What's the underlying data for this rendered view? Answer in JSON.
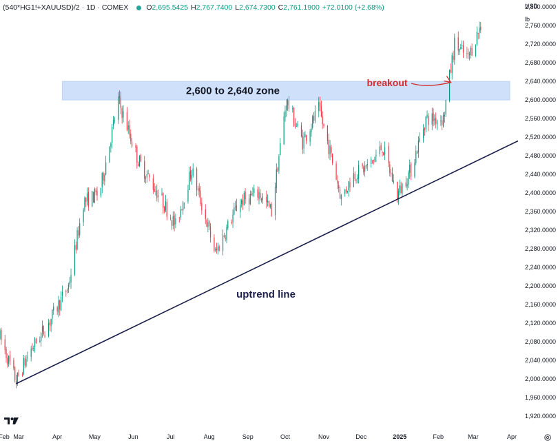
{
  "header": {
    "symbol": "(540*HG1!+XAUUSD)/2 · 1D · COMEX",
    "open_label": "O",
    "open": "2,695.5425",
    "high_label": "H",
    "high": "2,767.7400",
    "low_label": "L",
    "low": "2,674.7300",
    "close_label": "C",
    "close": "2,761.1900",
    "change": "+72.0100 (+2.68%)"
  },
  "colors": {
    "up": "#089981",
    "down": "#f23645",
    "zone": "#cfe0fb",
    "trendline": "#1b1f4a",
    "annotation": "#d32f2f",
    "text": "#131722"
  },
  "icons": {
    "logo": "tradingview-logo-icon",
    "settings": "gear-icon"
  },
  "chart_data": {
    "type": "candlestick",
    "currency": "USD",
    "unit": "lb",
    "ylim": [
      1895,
      2815
    ],
    "y_ticks": [
      "2,800.0000",
      "2,760.0000",
      "2,720.0000",
      "2,680.0000",
      "2,640.0000",
      "2,600.0000",
      "2,560.0000",
      "2,520.0000",
      "2,480.0000",
      "2,440.0000",
      "2,400.0000",
      "2,360.0000",
      "2,320.0000",
      "2,280.0000",
      "2,240.0000",
      "2,200.0000",
      "2,160.0000",
      "2,120.0000",
      "2,080.0000",
      "2,040.0000",
      "2,000.0000",
      "1,960.0000",
      "1,920.0000"
    ],
    "x_range": [
      "2024-02-15",
      "2025-04-06"
    ],
    "x_ticks": [
      {
        "date": "2024-02-01",
        "label": "Feb"
      },
      {
        "date": "2024-03-01",
        "label": "Mar"
      },
      {
        "date": "2024-04-01",
        "label": "Apr"
      },
      {
        "date": "2024-05-01",
        "label": "May"
      },
      {
        "date": "2024-06-01",
        "label": "Jun"
      },
      {
        "date": "2024-07-01",
        "label": "Jul"
      },
      {
        "date": "2024-08-01",
        "label": "Aug"
      },
      {
        "date": "2024-09-01",
        "label": "Sep"
      },
      {
        "date": "2024-10-01",
        "label": "Oct"
      },
      {
        "date": "2024-11-01",
        "label": "Nov"
      },
      {
        "date": "2024-12-01",
        "label": "Dec"
      },
      {
        "date": "2025-01-01",
        "label": "2025"
      },
      {
        "date": "2025-02-01",
        "label": "Feb"
      },
      {
        "date": "2025-03-01",
        "label": "Mar"
      },
      {
        "date": "2025-04-01",
        "label": "Apr"
      }
    ],
    "price_path": [
      [
        "2024-02-15",
        2090
      ],
      [
        "2024-02-28",
        1995
      ],
      [
        "2024-03-10",
        2060
      ],
      [
        "2024-03-25",
        2120
      ],
      [
        "2024-04-10",
        2200
      ],
      [
        "2024-04-22",
        2380
      ],
      [
        "2024-05-05",
        2400
      ],
      [
        "2024-05-20",
        2600
      ],
      [
        "2024-06-05",
        2470
      ],
      [
        "2024-06-25",
        2380
      ],
      [
        "2024-07-05",
        2330
      ],
      [
        "2024-07-18",
        2450
      ],
      [
        "2024-08-06",
        2270
      ],
      [
        "2024-08-25",
        2380
      ],
      [
        "2024-09-10",
        2400
      ],
      [
        "2024-09-20",
        2360
      ],
      [
        "2024-10-02",
        2600
      ],
      [
        "2024-10-15",
        2510
      ],
      [
        "2024-10-28",
        2580
      ],
      [
        "2024-11-05",
        2500
      ],
      [
        "2024-11-15",
        2390
      ],
      [
        "2024-11-25",
        2440
      ],
      [
        "2024-12-08",
        2460
      ],
      [
        "2024-12-18",
        2500
      ],
      [
        "2024-12-30",
        2395
      ],
      [
        "2025-01-10",
        2450
      ],
      [
        "2025-01-22",
        2560
      ],
      [
        "2025-02-05",
        2560
      ],
      [
        "2025-02-14",
        2720
      ],
      [
        "2025-02-25",
        2690
      ],
      [
        "2025-03-07",
        2761
      ]
    ],
    "zone": {
      "from": 2600,
      "to": 2640,
      "label": "2,600 to 2,640 zone"
    },
    "trendline": {
      "start": [
        "2024-02-28",
        1990
      ],
      "end": [
        "2025-04-06",
        2512
      ],
      "label": "uptrend line"
    },
    "annotation": {
      "label": "breakout",
      "target": [
        "2025-02-11",
        2638
      ]
    }
  }
}
